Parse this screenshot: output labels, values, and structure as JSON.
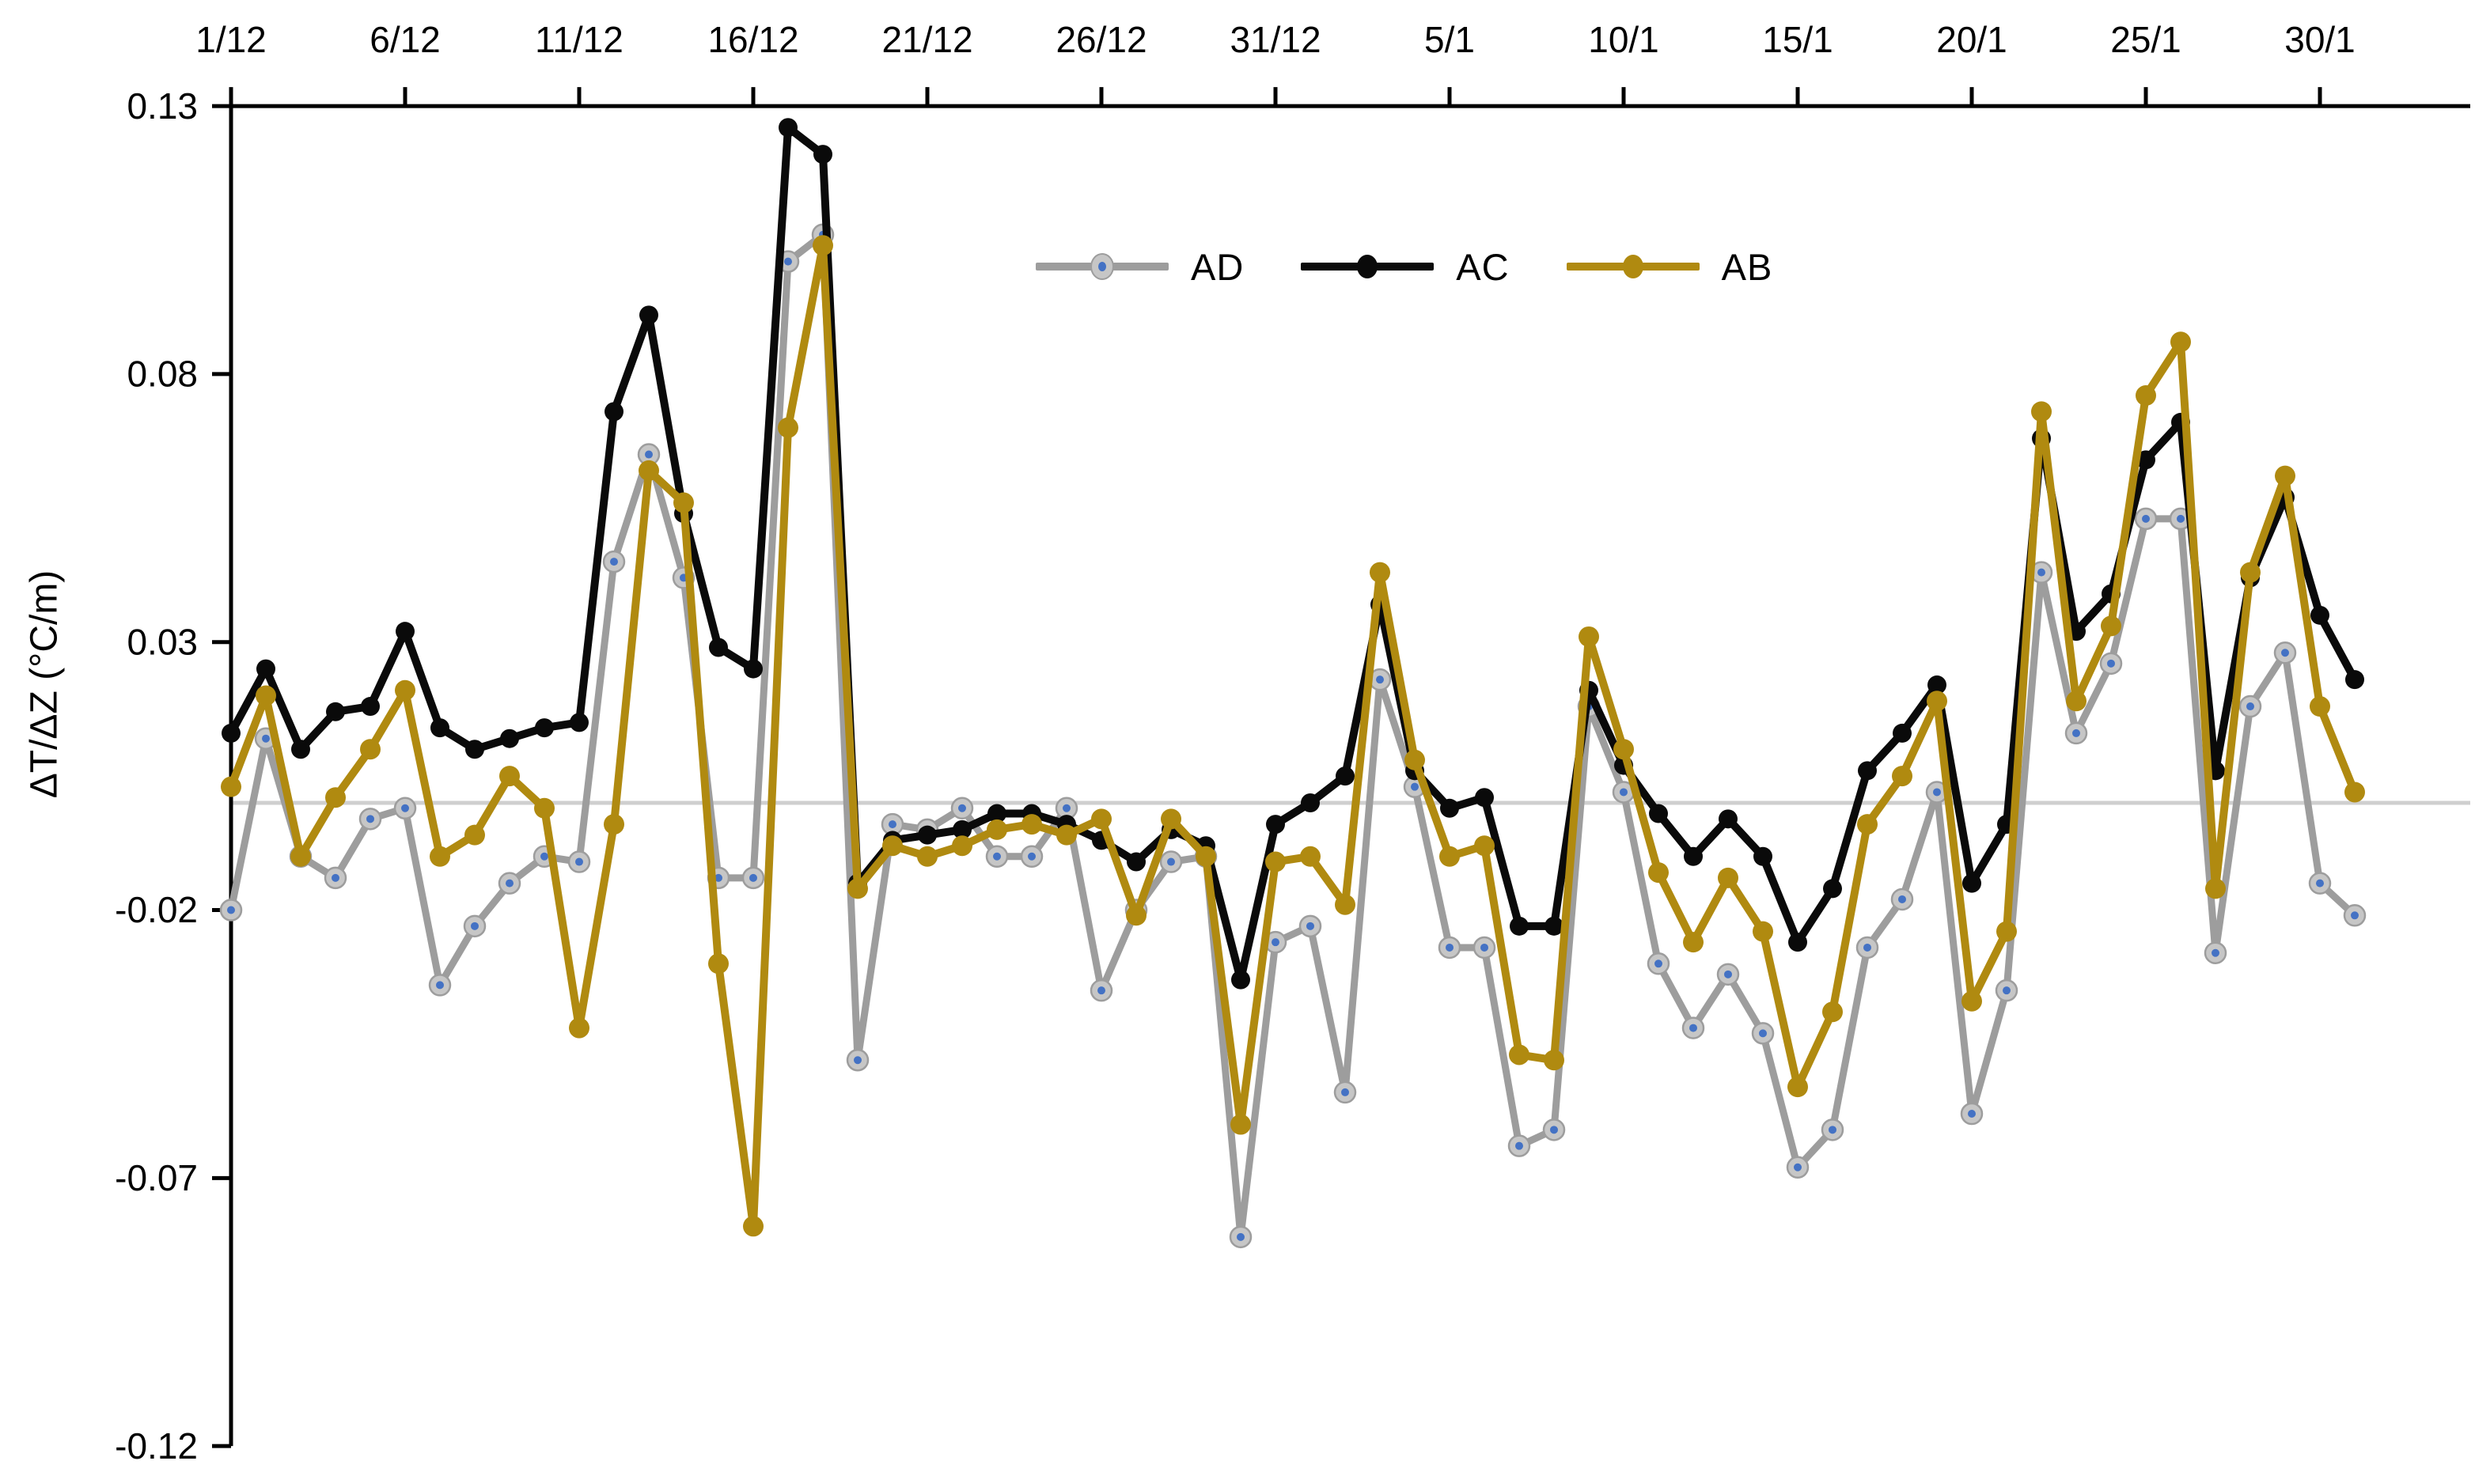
{
  "colors": {
    "background": "#ffffff",
    "axis": "#000000",
    "zero_line": "#cfcfcf",
    "series_ad": "#9d9d9d",
    "series_ad_marker_fill": "#c6c6c6",
    "series_ad_marker_center": "#4472c4",
    "series_ac": "#0a0a0a",
    "series_ab": "#b08a10"
  },
  "chart_data": {
    "type": "line",
    "title": "",
    "xlabel": "",
    "ylabel": "ΔT/ΔZ (°C/m)",
    "ylim": [
      -0.12,
      0.13
    ],
    "y_ticks": [
      0.13,
      0.08,
      0.03,
      -0.02,
      -0.07,
      -0.12
    ],
    "y_tick_labels": [
      "0.13",
      "0.08",
      "0.03",
      "-0.02",
      "-0.07",
      "-0.12"
    ],
    "x_tick_labels": [
      "1/12",
      "6/12",
      "11/12",
      "16/12",
      "21/12",
      "26/12",
      "31/12",
      "5/1",
      "10/1",
      "15/1",
      "20/1",
      "25/1",
      "30/1"
    ],
    "x_tick_interval": 5,
    "grid": "zero-line-only",
    "legend_position": "inside-top-center",
    "categories": [
      "1/12",
      "2/12",
      "3/12",
      "4/12",
      "5/12",
      "6/12",
      "7/12",
      "8/12",
      "9/12",
      "10/12",
      "11/12",
      "12/12",
      "13/12",
      "14/12",
      "15/12",
      "16/12",
      "17/12",
      "18/12",
      "19/12",
      "20/12",
      "21/12",
      "22/12",
      "23/12",
      "24/12",
      "25/12",
      "26/12",
      "27/12",
      "28/12",
      "29/12",
      "30/12",
      "31/12",
      "1/1",
      "2/1",
      "3/1",
      "4/1",
      "5/1",
      "6/1",
      "7/1",
      "8/1",
      "9/1",
      "10/1",
      "11/1",
      "12/1",
      "13/1",
      "14/1",
      "15/1",
      "16/1",
      "17/1",
      "18/1",
      "19/1",
      "20/1",
      "21/1",
      "22/1",
      "23/1",
      "24/1",
      "25/1",
      "26/1",
      "27/1",
      "28/1",
      "29/1",
      "30/1",
      "31/1"
    ],
    "series": [
      {
        "name": "AD",
        "color": "#9d9d9d",
        "line_width": 9,
        "marker": "circle-with-dot",
        "marker_r": 13,
        "marker_fill": "#c6c6c6",
        "marker_center": "#4472c4",
        "values": [
          -0.02,
          0.012,
          -0.01,
          -0.014,
          -0.003,
          -0.001,
          -0.034,
          -0.023,
          -0.015,
          -0.01,
          -0.011,
          0.045,
          0.065,
          0.042,
          -0.014,
          -0.014,
          0.101,
          0.106,
          -0.048,
          -0.004,
          -0.005,
          -0.001,
          -0.01,
          -0.01,
          -0.001,
          -0.035,
          -0.02,
          -0.011,
          -0.01,
          -0.081,
          -0.026,
          -0.023,
          -0.054,
          0.023,
          0.003,
          -0.027,
          -0.027,
          -0.064,
          -0.061,
          0.018,
          0.002,
          -0.03,
          -0.042,
          -0.032,
          -0.043,
          -0.068,
          -0.061,
          -0.027,
          -0.018,
          0.002,
          -0.058,
          -0.035,
          0.043,
          0.013,
          0.026,
          0.053,
          0.053,
          -0.028,
          0.018,
          0.028,
          -0.015,
          -0.021
        ]
      },
      {
        "name": "AC",
        "color": "#0a0a0a",
        "line_width": 10,
        "marker": "circle",
        "marker_r": 12,
        "marker_fill": "#0a0a0a",
        "values": [
          0.013,
          0.025,
          0.01,
          0.017,
          0.018,
          0.032,
          0.014,
          0.01,
          0.012,
          0.014,
          0.015,
          0.073,
          0.091,
          0.054,
          0.029,
          0.025,
          0.126,
          0.121,
          -0.015,
          -0.007,
          -0.006,
          -0.005,
          -0.002,
          -0.002,
          -0.004,
          -0.007,
          -0.011,
          -0.005,
          -0.008,
          -0.033,
          -0.004,
          0.0,
          0.005,
          0.037,
          0.006,
          -0.001,
          0.001,
          -0.023,
          -0.023,
          0.021,
          0.007,
          -0.002,
          -0.01,
          -0.003,
          -0.01,
          -0.026,
          -0.016,
          0.006,
          0.013,
          0.022,
          -0.015,
          -0.004,
          0.068,
          0.032,
          0.039,
          0.064,
          0.071,
          0.006,
          0.042,
          0.057,
          0.035,
          0.023
        ]
      },
      {
        "name": "AB",
        "color": "#b08a10",
        "line_width": 10,
        "marker": "circle",
        "marker_r": 13,
        "marker_fill": "#b08a10",
        "values": [
          0.003,
          0.02,
          -0.01,
          0.001,
          0.01,
          0.021,
          -0.01,
          -0.006,
          0.005,
          -0.001,
          -0.042,
          -0.004,
          0.062,
          0.056,
          -0.03,
          -0.079,
          0.07,
          0.104,
          -0.016,
          -0.008,
          -0.01,
          -0.008,
          -0.005,
          -0.004,
          -0.006,
          -0.003,
          -0.021,
          -0.003,
          -0.01,
          -0.06,
          -0.011,
          -0.01,
          -0.019,
          0.043,
          0.008,
          -0.01,
          -0.008,
          -0.047,
          -0.048,
          0.031,
          0.01,
          -0.013,
          -0.026,
          -0.014,
          -0.024,
          -0.053,
          -0.039,
          -0.004,
          0.005,
          0.019,
          -0.037,
          -0.024,
          0.073,
          0.019,
          0.033,
          0.076,
          0.086,
          -0.016,
          0.043,
          0.061,
          0.018,
          0.002
        ]
      }
    ]
  }
}
